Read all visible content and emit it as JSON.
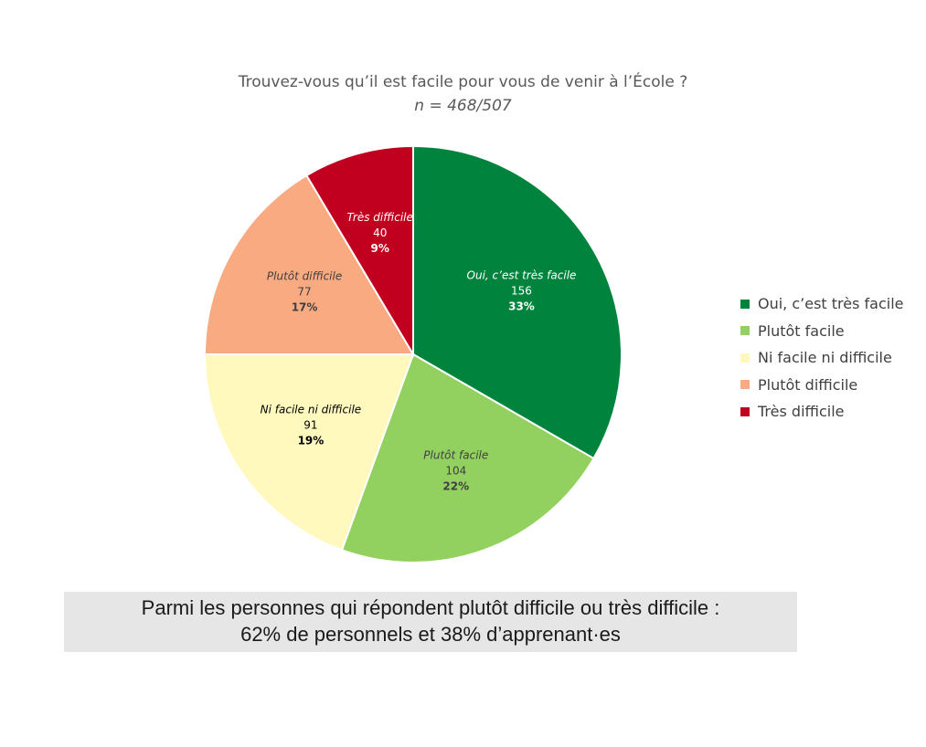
{
  "chart_data": {
    "type": "pie",
    "title": "Trouvez-vous qu’il est facile pour vous de venir à l’École ?",
    "subtitle": "n = 468/507",
    "legend_position": "right",
    "slices": [
      {
        "label": "Oui, c’est très facile",
        "value": 156,
        "percent": "33%",
        "color": "#00843d",
        "text_color": "#ffffff"
      },
      {
        "label": "Plutôt facile",
        "value": 104,
        "percent": "22%",
        "color": "#92d05f",
        "text_color": "#404040"
      },
      {
        "label": "Ni facile ni difficile",
        "value": 91,
        "percent": "19%",
        "color": "#fff9be",
        "text_color": "#000000"
      },
      {
        "label": "Plutôt difficile",
        "value": 77,
        "percent": "17%",
        "color": "#f9aa80",
        "text_color": "#404040"
      },
      {
        "label": "Très difficile",
        "value": 40,
        "percent": "9%",
        "color": "#c0001e",
        "text_color": "#ffffff"
      }
    ]
  },
  "note": {
    "line1": "Parmi les personnes qui répondent plutôt difficile ou très difficile :",
    "line2": "62% de personnels et 38% d’apprenant·es"
  }
}
